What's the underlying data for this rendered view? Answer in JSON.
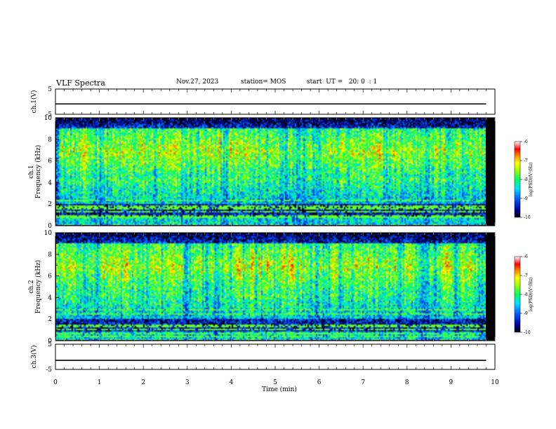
{
  "header": {
    "title": "VLF Spectra",
    "date": "Nov.27, 2023",
    "station": "station= MOS",
    "start": "start  UT =   20: 0  : 1"
  },
  "chart_data": [
    {
      "type": "line",
      "panel": "ch1-waveform",
      "ylabel": "ch.1(V)",
      "ylim": [
        -5,
        5
      ],
      "yticks": [
        "5",
        "-5"
      ],
      "xlim": [
        0,
        10
      ],
      "series": [
        {
          "x": [
            0,
            9.8
          ],
          "values": [
            -0.9,
            -0.9
          ]
        }
      ]
    },
    {
      "type": "heatmap",
      "panel": "ch1-spectrogram",
      "ylabel_line1": "ch.1",
      "ylabel_line2": "Frequency  (kHz)",
      "ylim": [
        0,
        10
      ],
      "yticks": [
        "0",
        "2",
        "4",
        "6",
        "8",
        "10"
      ],
      "xlim": [
        0,
        9.8
      ],
      "colorbar": {
        "label": "log(PSD)(V²/Hz)",
        "range": [
          -10,
          -6
        ],
        "ticks": [
          "-6",
          "-7",
          "-8",
          "-9",
          "-10"
        ]
      }
    },
    {
      "type": "heatmap",
      "panel": "ch2-spectrogram",
      "ylabel_line1": "ch.2",
      "ylabel_line2": "Frequency  (kHz)",
      "ylim": [
        0,
        10
      ],
      "yticks": [
        "0",
        "2",
        "4",
        "6",
        "8",
        "10"
      ],
      "xlim": [
        0,
        9.8
      ],
      "colorbar": {
        "label": "log(PSD)(V²/Hz)",
        "range": [
          -10,
          -6
        ],
        "ticks": [
          "-6",
          "-7",
          "-8",
          "-9",
          "-10"
        ]
      }
    },
    {
      "type": "line",
      "panel": "ch3-waveform",
      "ylabel": "ch.3(V)",
      "ylim": [
        -5,
        5
      ],
      "yticks": [
        "5",
        "-5"
      ],
      "xlim": [
        0,
        10
      ],
      "series": [
        {
          "x": [
            0,
            9.8
          ],
          "values": [
            -1.4,
            -1.4
          ]
        }
      ]
    }
  ],
  "xaxis": {
    "label": "Time  (min)",
    "ticks": [
      "0",
      "1",
      "2",
      "3",
      "4",
      "5",
      "6",
      "7",
      "8",
      "9",
      "10"
    ]
  }
}
